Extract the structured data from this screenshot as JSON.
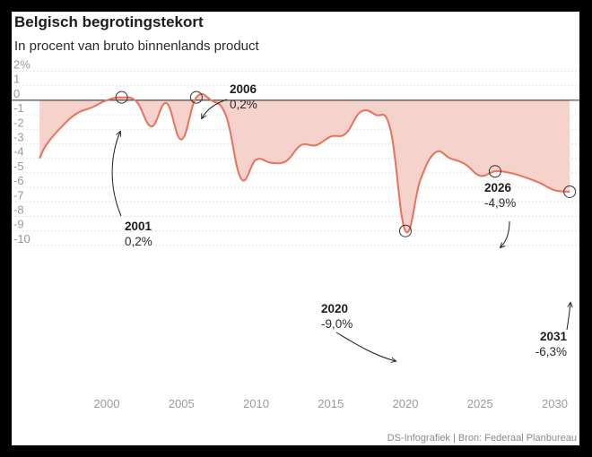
{
  "header": {
    "title": "Belgisch begrotingstekort",
    "subtitle": "In procent van bruto binnenlands product"
  },
  "footer": {
    "source": "DS-Infografiek | Bron: Federaal Planbureau"
  },
  "colors": {
    "line": "#e8725a",
    "area": "#f6d2cc",
    "grid": "#dcdcdc",
    "zero": "#222222"
  },
  "chart_data": {
    "type": "area",
    "title": "Belgisch begrotingstekort",
    "subtitle": "In procent van bruto binnenlands product",
    "xlabel": "",
    "ylabel": "",
    "xlim": [
      1995,
      2031.5
    ],
    "ylim": [
      -10.5,
      2.2
    ],
    "grid": true,
    "x_ticks": [
      "2000",
      "2005",
      "2010",
      "2015",
      "2020",
      "2025",
      "2030"
    ],
    "x_tick_values": [
      2000,
      2005,
      2010,
      2015,
      2020,
      2025,
      2030
    ],
    "y_ticks": [
      "2%",
      "1",
      "0",
      "-1",
      "-2",
      "-3",
      "-4",
      "-5",
      "-6",
      "-7",
      "-8",
      "-9",
      "-10"
    ],
    "y_tick_values": [
      2,
      1,
      0,
      -1,
      -2,
      -3,
      -4,
      -5,
      -6,
      -7,
      -8,
      -9,
      -10
    ],
    "series": [
      {
        "name": "",
        "x": [
          1995.5,
          1996,
          1997,
          1998,
          1999,
          2000,
          2001,
          2002,
          2003,
          2004,
          2005,
          2006,
          2007,
          2008,
          2009,
          2010,
          2011,
          2012,
          2013,
          2014,
          2015,
          2016,
          2017,
          2018,
          2019,
          2020,
          2021,
          2022,
          2023,
          2024,
          2025,
          2026,
          2027,
          2028,
          2029,
          2030,
          2031
        ],
        "y": [
          -4.0,
          -3.0,
          -1.8,
          -0.9,
          -0.5,
          0.0,
          0.2,
          -0.1,
          -1.8,
          -0.2,
          -2.7,
          0.2,
          0.0,
          -1.1,
          -5.4,
          -4.1,
          -4.3,
          -4.2,
          -3.1,
          -3.1,
          -2.5,
          -2.3,
          -0.8,
          -1.0,
          -2.0,
          -9.0,
          -5.5,
          -3.6,
          -4.0,
          -4.4,
          -5.2,
          -4.9,
          -5.0,
          -5.3,
          -5.7,
          -6.2,
          -6.3
        ]
      }
    ],
    "annotations": [
      {
        "year": "2001",
        "value": "0,2%"
      },
      {
        "year": "2006",
        "value": "0,2%"
      },
      {
        "year": "2020",
        "value": "-9,0%"
      },
      {
        "year": "2026",
        "value": "-4,9%"
      },
      {
        "year": "2031",
        "value": "-6,3%"
      }
    ]
  }
}
